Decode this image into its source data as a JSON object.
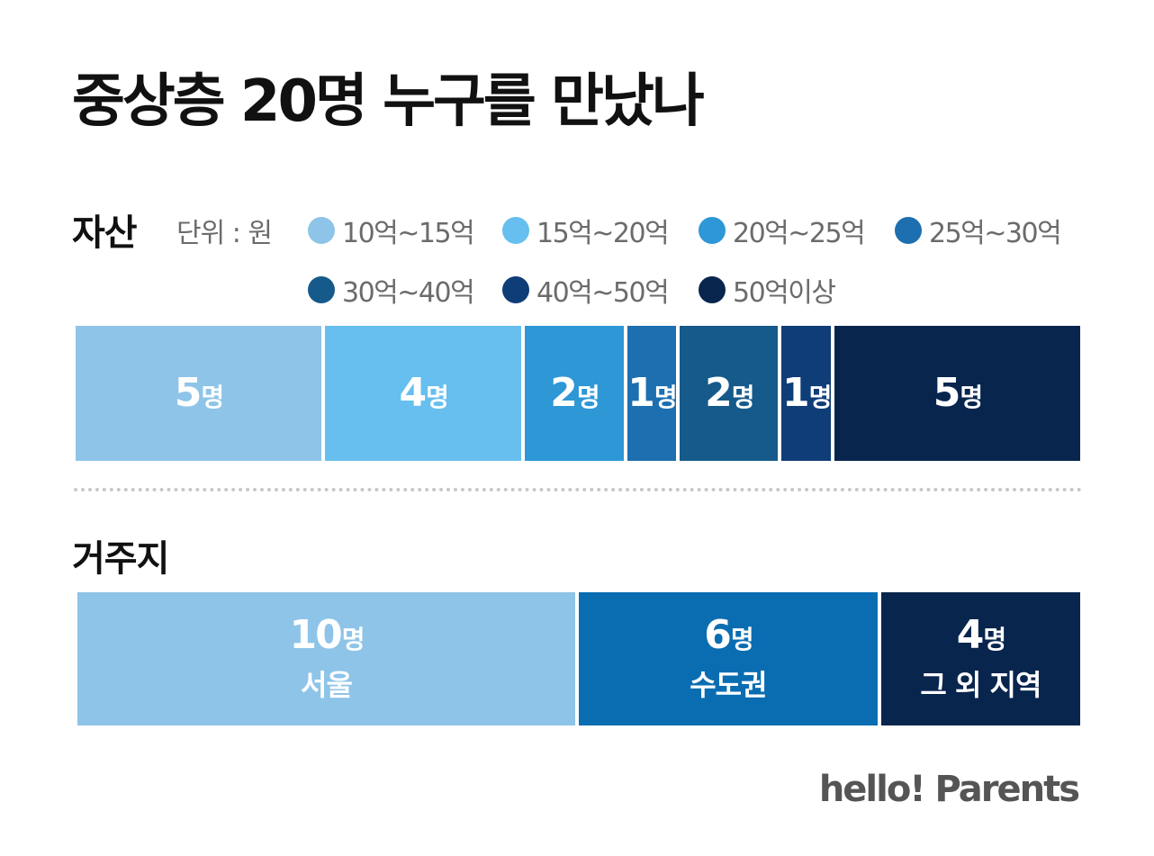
{
  "title": "중상층 20명 누구를 만났나",
  "brand": "hello! Parents",
  "chart_data": [
    {
      "type": "bar",
      "orientation": "horizontal-stacked",
      "title": "자산",
      "unit_label": "단위 : 원",
      "count_unit": "명",
      "total": 20,
      "series": [
        {
          "name": "10억~15억",
          "value": 5,
          "color": "#8ec4e8"
        },
        {
          "name": "15억~20억",
          "value": 4,
          "color": "#66bfee"
        },
        {
          "name": "20억~25억",
          "value": 2,
          "color": "#2e97d6"
        },
        {
          "name": "25억~30억",
          "value": 1,
          "color": "#1d6fb0"
        },
        {
          "name": "30억~40억",
          "value": 2,
          "color": "#155a8a"
        },
        {
          "name": "40억~50억",
          "value": 1,
          "color": "#0f3d78"
        },
        {
          "name": "50억이상",
          "value": 5,
          "color": "#08254e"
        }
      ]
    },
    {
      "type": "bar",
      "orientation": "horizontal-stacked",
      "title": "거주지",
      "count_unit": "명",
      "total": 20,
      "series": [
        {
          "name": "서울",
          "value": 10,
          "color": "#8ec4e8"
        },
        {
          "name": "수도권",
          "value": 6,
          "color": "#0a6db2"
        },
        {
          "name": "그 외 지역",
          "value": 4,
          "color": "#08254e"
        }
      ]
    }
  ]
}
